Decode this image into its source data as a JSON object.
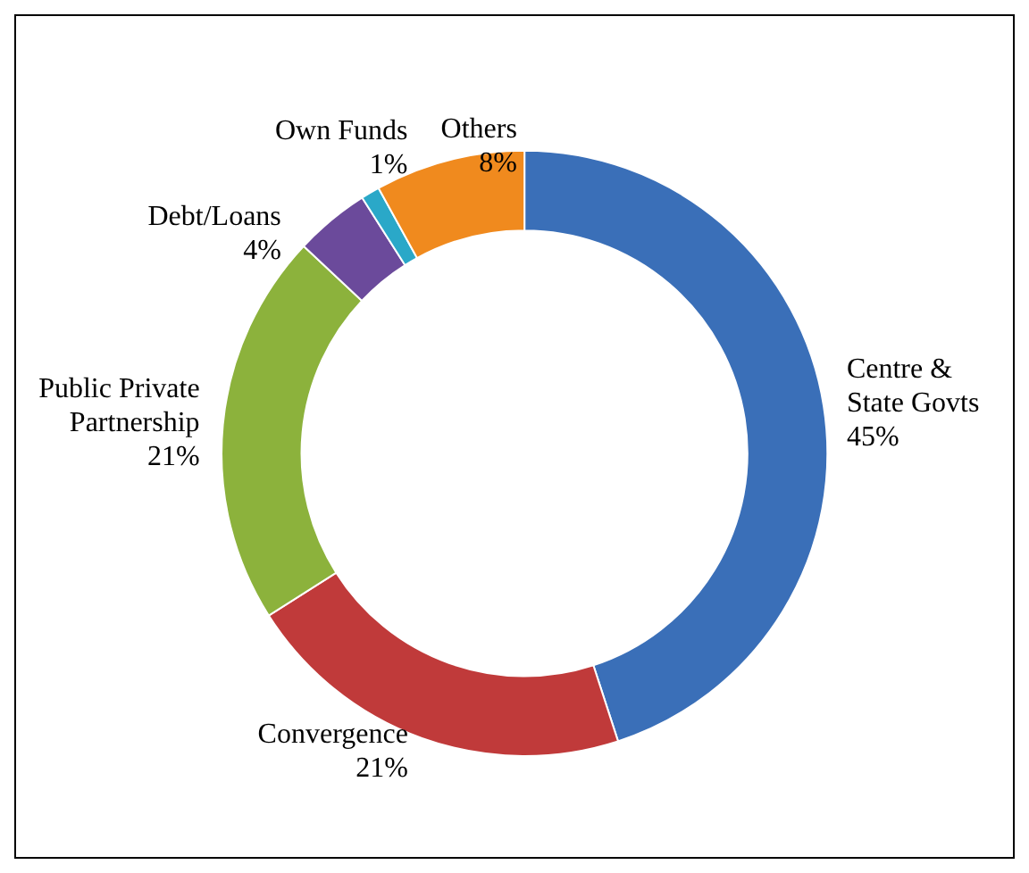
{
  "chart_data": {
    "type": "donut",
    "categories": [
      "Centre & State Govts",
      "Convergence",
      "Public Private Partnership",
      "Debt/Loans",
      "Own Funds",
      "Others"
    ],
    "values": [
      45,
      21,
      21,
      4,
      1,
      8
    ],
    "value_labels": [
      "45%",
      "21%",
      "21%",
      "4%",
      "1%",
      "8%"
    ],
    "colors": [
      "#3a6fb8",
      "#c03a3a",
      "#8cb23c",
      "#6b4a9b",
      "#2aa8c8",
      "#f08a1e"
    ],
    "legend": false
  }
}
